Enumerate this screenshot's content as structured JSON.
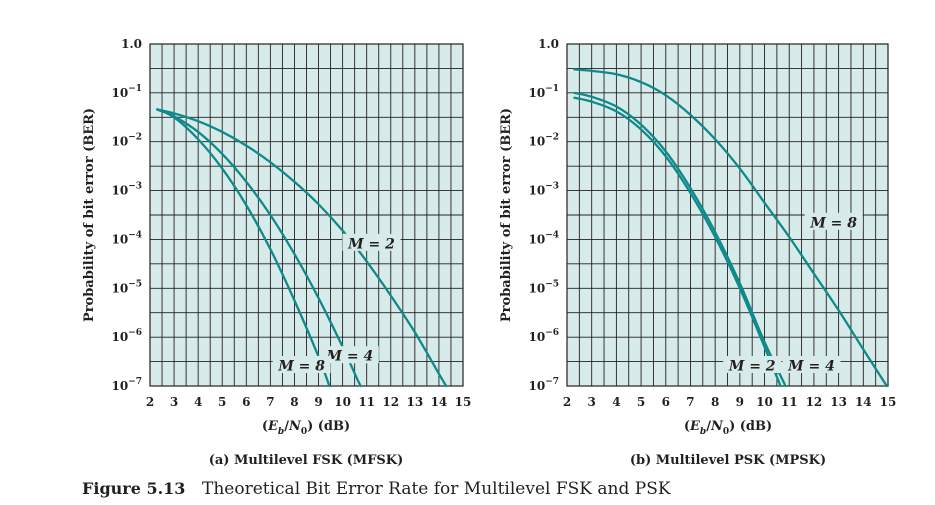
{
  "colors": {
    "plot_bg": "#d8ebeb",
    "grid": "#231f20",
    "curve": "#0f8a8a",
    "caption_accent": "#0f7a8c"
  },
  "caption": {
    "number": "Figure 5.13",
    "text": "Theoretical Bit Error Rate for Multilevel FSK and PSK"
  },
  "chart_data": [
    {
      "type": "line",
      "title": "(a) Multilevel FSK (MFSK)",
      "xlabel": "(Eb/N0) (dB)",
      "ylabel": "Probability of bit error (BER)",
      "x_ticks": [
        2,
        3,
        4,
        5,
        6,
        7,
        8,
        9,
        10,
        11,
        12,
        13,
        14,
        15
      ],
      "y_scale": "log",
      "y_ticks": [
        {
          "exp": 0,
          "label": "1.0"
        },
        {
          "exp": -1,
          "label": "10"
        },
        {
          "exp": -2,
          "label": "10"
        },
        {
          "exp": -3,
          "label": "10"
        },
        {
          "exp": -4,
          "label": "10"
        },
        {
          "exp": -5,
          "label": "10"
        },
        {
          "exp": -6,
          "label": "10"
        },
        {
          "exp": -7,
          "label": "10"
        }
      ],
      "xlim": [
        2,
        15
      ],
      "ylim_exp": [
        -7,
        0
      ],
      "grid": true,
      "series": [
        {
          "name": "M = 2",
          "points": [
            [
              2.3,
              -1.34
            ],
            [
              3,
              -1.42
            ],
            [
              4,
              -1.58
            ],
            [
              5,
              -1.8
            ],
            [
              6,
              -2.08
            ],
            [
              7,
              -2.42
            ],
            [
              8,
              -2.82
            ],
            [
              9,
              -3.28
            ],
            [
              10,
              -3.82
            ],
            [
              11,
              -4.45
            ],
            [
              12,
              -5.15
            ],
            [
              13,
              -5.9
            ],
            [
              14,
              -6.75
            ],
            [
              14.3,
              -7
            ]
          ]
        },
        {
          "name": "M = 4",
          "points": [
            [
              2.3,
              -1.34
            ],
            [
              3,
              -1.48
            ],
            [
              4,
              -1.8
            ],
            [
              5,
              -2.25
            ],
            [
              6,
              -2.82
            ],
            [
              7,
              -3.5
            ],
            [
              8,
              -4.3
            ],
            [
              9,
              -5.2
            ],
            [
              10,
              -6.2
            ],
            [
              10.6,
              -6.85
            ],
            [
              10.75,
              -7
            ]
          ]
        },
        {
          "name": "M = 8",
          "points": [
            [
              2.3,
              -1.34
            ],
            [
              3,
              -1.5
            ],
            [
              4,
              -1.95
            ],
            [
              5,
              -2.55
            ],
            [
              6,
              -3.3
            ],
            [
              7,
              -4.2
            ],
            [
              8,
              -5.25
            ],
            [
              9,
              -6.4
            ],
            [
              9.45,
              -7
            ]
          ]
        }
      ],
      "annotations": [
        {
          "label": "M = 2",
          "x": 11.2,
          "y": -4.08
        },
        {
          "label": "M = 4",
          "x": 10.3,
          "y": -6.38
        },
        {
          "label": "M = 8",
          "x": 8.3,
          "y": -6.58
        }
      ]
    },
    {
      "type": "line",
      "title": "(b) Multilevel PSK (MPSK)",
      "xlabel": "(Eb/N0) (dB)",
      "ylabel": "Probability of bit error (BER)",
      "x_ticks": [
        2,
        3,
        4,
        5,
        6,
        7,
        8,
        9,
        10,
        11,
        12,
        13,
        14,
        15
      ],
      "y_scale": "log",
      "y_ticks": [
        {
          "exp": 0,
          "label": "1.0"
        },
        {
          "exp": -1,
          "label": "10"
        },
        {
          "exp": -2,
          "label": "10"
        },
        {
          "exp": -3,
          "label": "10"
        },
        {
          "exp": -4,
          "label": "10"
        },
        {
          "exp": -5,
          "label": "10"
        },
        {
          "exp": -6,
          "label": "10"
        },
        {
          "exp": -7,
          "label": "10"
        }
      ],
      "xlim": [
        2,
        15
      ],
      "ylim_exp": [
        -7,
        0
      ],
      "grid": true,
      "series": [
        {
          "name": "M = 2",
          "points": [
            [
              2.3,
              -1.1
            ],
            [
              3,
              -1.18
            ],
            [
              4,
              -1.38
            ],
            [
              5,
              -1.75
            ],
            [
              6,
              -2.3
            ],
            [
              7,
              -3.05
            ],
            [
              8,
              -3.95
            ],
            [
              9,
              -5.0
            ],
            [
              10,
              -6.2
            ],
            [
              10.65,
              -7
            ]
          ]
        },
        {
          "name": "M = 4",
          "points": [
            [
              2.3,
              -1.0
            ],
            [
              3,
              -1.08
            ],
            [
              4,
              -1.28
            ],
            [
              5,
              -1.65
            ],
            [
              6,
              -2.2
            ],
            [
              7,
              -2.95
            ],
            [
              8,
              -3.85
            ],
            [
              9,
              -4.9
            ],
            [
              10,
              -6.1
            ],
            [
              10.85,
              -7
            ]
          ]
        },
        {
          "name": "M = 8",
          "points": [
            [
              2.3,
              -0.52
            ],
            [
              3,
              -0.55
            ],
            [
              4,
              -0.62
            ],
            [
              5,
              -0.78
            ],
            [
              6,
              -1.05
            ],
            [
              7,
              -1.45
            ],
            [
              8,
              -1.95
            ],
            [
              9,
              -2.55
            ],
            [
              10,
              -3.25
            ],
            [
              11,
              -3.95
            ],
            [
              12,
              -4.7
            ],
            [
              13,
              -5.45
            ],
            [
              14,
              -6.25
            ],
            [
              14.95,
              -7
            ]
          ]
        }
      ],
      "annotations": [
        {
          "label": "M = 8",
          "x": 12.8,
          "y": -3.65
        },
        {
          "label": "M = 2",
          "x": 9.5,
          "y": -6.58
        },
        {
          "label": "M = 4",
          "x": 11.9,
          "y": -6.58
        }
      ]
    }
  ]
}
